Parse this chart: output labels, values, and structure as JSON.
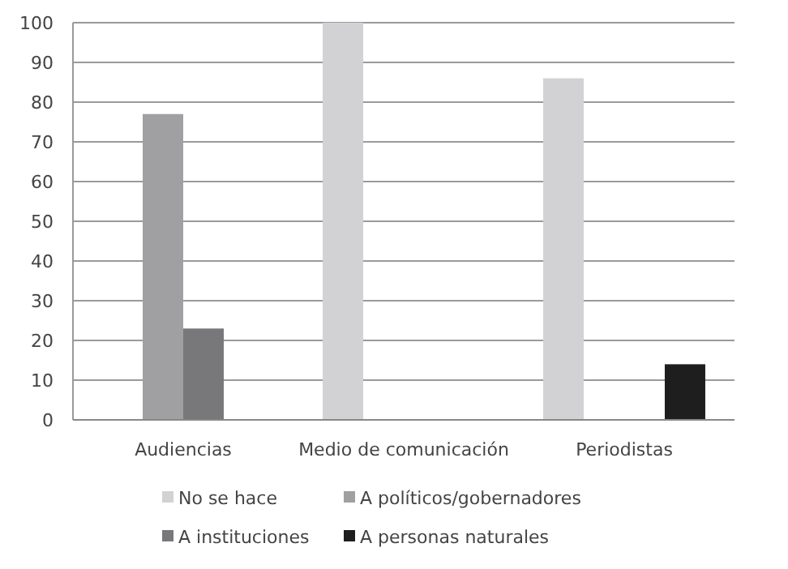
{
  "chart_data": {
    "type": "bar",
    "categories": [
      "Audiencias",
      "Medio de comunicación",
      "Periodistas"
    ],
    "series": [
      {
        "name": "No se hace",
        "color": "#d2d2d4",
        "values": [
          0,
          100,
          86
        ]
      },
      {
        "name": "A políticos/gobernadores",
        "color": "#a0a0a2",
        "values": [
          77,
          0,
          0
        ]
      },
      {
        "name": "A instituciones",
        "color": "#78787a",
        "values": [
          23,
          0,
          0
        ]
      },
      {
        "name": "A personas naturales",
        "color": "#1e1e1e",
        "values": [
          0,
          0,
          14
        ]
      }
    ],
    "ylim": [
      0,
      100
    ],
    "yticks": [
      0,
      10,
      20,
      30,
      40,
      50,
      60,
      70,
      80,
      90,
      100
    ],
    "grid": "y",
    "legend": "bottom"
  }
}
